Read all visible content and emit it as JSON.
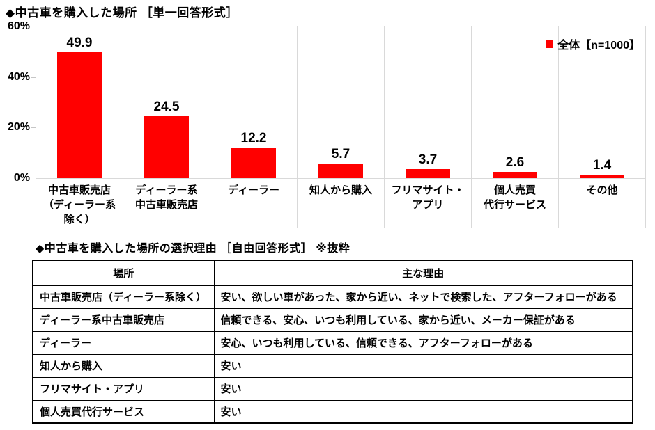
{
  "page": {
    "title2": "◆中古車を購入した場所の選択理由 ［自由回答形式］ ※抜粋"
  },
  "chart_data": {
    "type": "bar",
    "title": "◆中古車を購入した場所 ［単一回答形式］",
    "legend": "全体【n=1000】",
    "legend_position": "top-right inside plot",
    "bar_color": "#ff0000",
    "categories": [
      "中古車販売店\n（ディーラー系\n除く）",
      "ディーラー系\n中古車販売店",
      "ディーラー",
      "知人から購入",
      "フリマサイト・\nアプリ",
      "個人売買\n代行サービス",
      "その他"
    ],
    "values": [
      49.9,
      24.5,
      12.2,
      5.7,
      3.7,
      2.6,
      1.4
    ],
    "ylabel": "",
    "xlabel": "",
    "ylim": [
      0,
      60
    ],
    "yticks": [
      {
        "label": "0%",
        "value": 0
      },
      {
        "label": "20%",
        "value": 20
      },
      {
        "label": "40%",
        "value": 40
      },
      {
        "label": "60%",
        "value": 60
      }
    ],
    "grid": "vertical category separators only, no horizontal gridlines"
  },
  "table": {
    "headers": [
      "場所",
      "主な理由"
    ],
    "rows": [
      [
        "中古車販売店（ディーラー系除く）",
        "安い、欲しい車があった、家から近い、ネットで検索した、アフターフォローがある"
      ],
      [
        "ディーラー系中古車販売店",
        "信頼できる、安心、いつも利用している、家から近い、メーカー保証がある"
      ],
      [
        "ディーラー",
        "安心、いつも利用している、信頼できる、アフターフォローがある"
      ],
      [
        "知人から購入",
        "安い"
      ],
      [
        "フリマサイト・アプリ",
        "安い"
      ],
      [
        "個人売買代行サービス",
        "安い"
      ]
    ]
  }
}
